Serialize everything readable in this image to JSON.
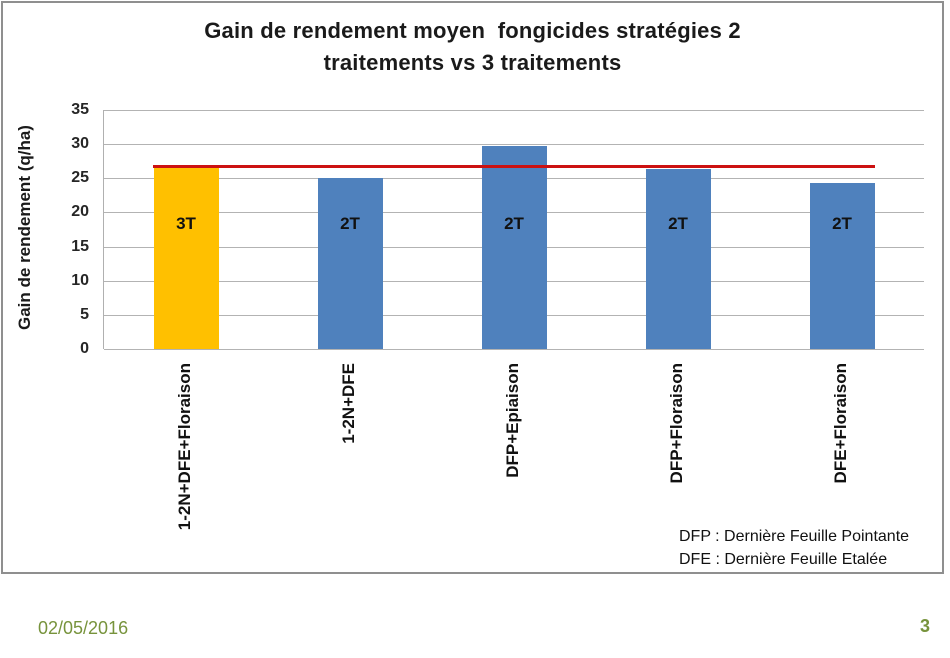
{
  "slide": {
    "title": {
      "line1": "Gain de rendement moyen  fongicides stratégies 2",
      "line2": "traitements vs 3 traitements"
    },
    "note": {
      "line1": "DFP : Dernière Feuille Pointante",
      "line2": "DFE : Dernière Feuille Etalée"
    },
    "footer": {
      "date": "02/05/2016",
      "page_number": "3",
      "accent_color": "#77933C"
    }
  },
  "chart_data": {
    "type": "bar",
    "title": "Gain de rendement moyen fongicides stratégies 2 traitements vs 3 traitements",
    "xlabel": "",
    "ylabel": "Gain de rendement (q/ha)",
    "ylim": [
      0,
      35
    ],
    "yticks": [
      0,
      5,
      10,
      15,
      20,
      25,
      30,
      35
    ],
    "grid": true,
    "legend": false,
    "categories": [
      "1-2N+DFE+Floraison",
      "1-2N+DFE",
      "DFP+Epiaison",
      "DFP+Floraison",
      "DFE+Floraison"
    ],
    "values": [
      26.5,
      25.0,
      29.8,
      26.3,
      24.3
    ],
    "bar_labels": [
      "3T",
      "2T",
      "2T",
      "2T",
      "2T"
    ],
    "bar_colors": [
      "#FFC000",
      "#4F81BD",
      "#4F81BD",
      "#4F81BD",
      "#4F81BD"
    ],
    "reference_line": {
      "value": 26.5,
      "color": "#CC1111"
    }
  }
}
